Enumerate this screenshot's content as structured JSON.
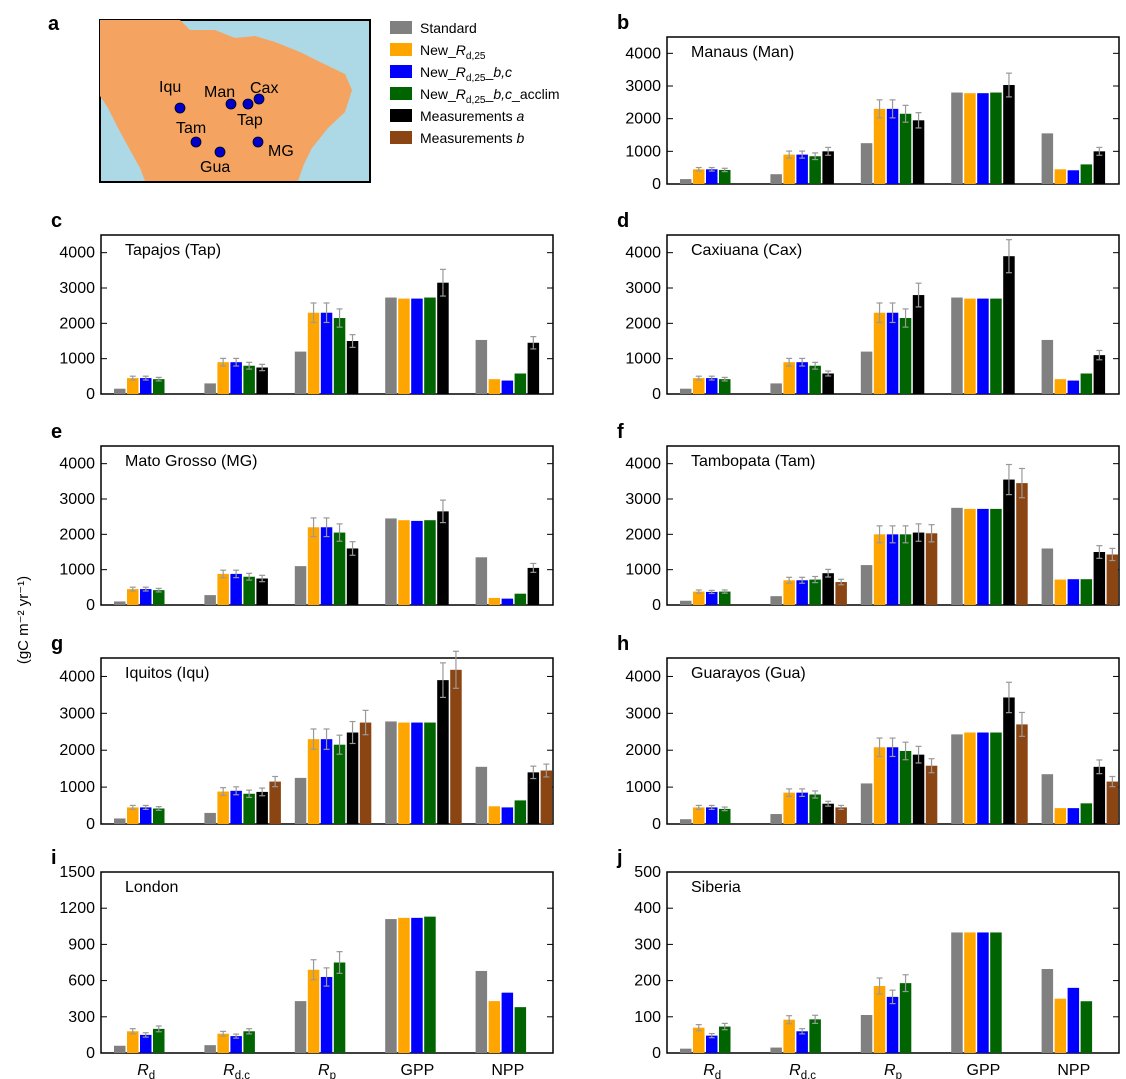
{
  "figure": {
    "ylabel": "(gC m⁻² yr⁻¹)"
  },
  "legend": {
    "items": [
      {
        "label": "Standard",
        "color": "#808080"
      },
      {
        "label": "New_Rd,25",
        "color": "#FFA500"
      },
      {
        "label": "New_Rd,25_b,c",
        "color": "#0000FF"
      },
      {
        "label": "New_Rd,25_b,c_acclim",
        "color": "#006400"
      },
      {
        "label": "Measurements a",
        "color": "#000000"
      },
      {
        "label": "Measurements b",
        "color": "#8B4513"
      }
    ]
  },
  "map": {
    "letter": "a",
    "sites": [
      {
        "code": "Iqu"
      },
      {
        "code": "Man"
      },
      {
        "code": "Cax"
      },
      {
        "code": "Tap"
      },
      {
        "code": "Tam"
      },
      {
        "code": "MG"
      },
      {
        "code": "Gua"
      }
    ],
    "colors": {
      "land": "#F4A460",
      "ocean": "#ADD8E6",
      "site": "#0000CC"
    }
  },
  "chart_data": [
    {
      "letter": "b",
      "title": "Manaus (Man)",
      "type": "bar",
      "categories": [
        "Rd",
        "Rd,c",
        "Rp",
        "GPP",
        "NPP"
      ],
      "ylim": [
        0,
        4500
      ],
      "yticks": [
        0,
        1000,
        2000,
        3000,
        4000
      ],
      "series": [
        {
          "values": [
            150,
            300,
            1250,
            2800,
            1550
          ]
        },
        {
          "values": [
            450,
            900,
            2300,
            2780,
            450
          ]
        },
        {
          "values": [
            450,
            900,
            2300,
            2780,
            420
          ]
        },
        {
          "values": [
            430,
            850,
            2150,
            2800,
            600
          ]
        },
        {
          "values": [
            null,
            1000,
            1950,
            3030,
            1000
          ]
        },
        {
          "values": [
            null,
            null,
            null,
            null,
            null
          ]
        }
      ]
    },
    {
      "letter": "c",
      "title": "Tapajos (Tap)",
      "type": "bar",
      "categories": [
        "Rd",
        "Rd,c",
        "Rp",
        "GPP",
        "NPP"
      ],
      "ylim": [
        0,
        4500
      ],
      "yticks": [
        0,
        1000,
        2000,
        3000,
        4000
      ],
      "series": [
        {
          "values": [
            150,
            300,
            1200,
            2730,
            1530
          ]
        },
        {
          "values": [
            450,
            900,
            2300,
            2700,
            420
          ]
        },
        {
          "values": [
            450,
            900,
            2300,
            2700,
            380
          ]
        },
        {
          "values": [
            420,
            800,
            2150,
            2730,
            580
          ]
        },
        {
          "values": [
            null,
            750,
            1500,
            3150,
            1450
          ]
        },
        {
          "values": [
            null,
            null,
            null,
            null,
            null
          ]
        }
      ]
    },
    {
      "letter": "d",
      "title": "Caxiuana (Cax)",
      "type": "bar",
      "categories": [
        "Rd",
        "Rd,c",
        "Rp",
        "GPP",
        "NPP"
      ],
      "ylim": [
        0,
        4500
      ],
      "yticks": [
        0,
        1000,
        2000,
        3000,
        4000
      ],
      "series": [
        {
          "values": [
            150,
            300,
            1200,
            2730,
            1530
          ]
        },
        {
          "values": [
            450,
            900,
            2300,
            2700,
            420
          ]
        },
        {
          "values": [
            450,
            900,
            2300,
            2700,
            380
          ]
        },
        {
          "values": [
            420,
            800,
            2150,
            2700,
            580
          ]
        },
        {
          "values": [
            null,
            580,
            2800,
            3900,
            1100
          ]
        },
        {
          "values": [
            null,
            null,
            null,
            null,
            null
          ]
        }
      ]
    },
    {
      "letter": "e",
      "title": "Mato Grosso (MG)",
      "type": "bar",
      "categories": [
        "Rd",
        "Rd,c",
        "Rp",
        "GPP",
        "NPP"
      ],
      "ylim": [
        0,
        4500
      ],
      "yticks": [
        0,
        1000,
        2000,
        3000,
        4000
      ],
      "series": [
        {
          "values": [
            100,
            280,
            1100,
            2450,
            1350
          ]
        },
        {
          "values": [
            450,
            880,
            2200,
            2400,
            200
          ]
        },
        {
          "values": [
            450,
            880,
            2200,
            2380,
            180
          ]
        },
        {
          "values": [
            420,
            800,
            2050,
            2400,
            320
          ]
        },
        {
          "values": [
            null,
            750,
            1600,
            2650,
            1050
          ]
        },
        {
          "values": [
            null,
            null,
            null,
            null,
            null
          ]
        }
      ]
    },
    {
      "letter": "f",
      "title": "Tambopata (Tam)",
      "type": "bar",
      "categories": [
        "Rd",
        "Rd,c",
        "Rp",
        "GPP",
        "NPP"
      ],
      "ylim": [
        0,
        4500
      ],
      "yticks": [
        0,
        1000,
        2000,
        3000,
        4000
      ],
      "series": [
        {
          "values": [
            120,
            250,
            1130,
            2750,
            1600
          ]
        },
        {
          "values": [
            380,
            700,
            2000,
            2720,
            720
          ]
        },
        {
          "values": [
            370,
            700,
            2000,
            2720,
            730
          ]
        },
        {
          "values": [
            380,
            720,
            2000,
            2720,
            730
          ]
        },
        {
          "values": [
            null,
            900,
            2050,
            3550,
            1500
          ]
        },
        {
          "values": [
            null,
            650,
            2030,
            3450,
            1430
          ]
        }
      ]
    },
    {
      "letter": "g",
      "title": "Iquitos (Iqu)",
      "type": "bar",
      "categories": [
        "Rd",
        "Rd,c",
        "Rp",
        "GPP",
        "NPP"
      ],
      "ylim": [
        0,
        4500
      ],
      "yticks": [
        0,
        1000,
        2000,
        3000,
        4000
      ],
      "series": [
        {
          "values": [
            150,
            300,
            1250,
            2780,
            1550
          ]
        },
        {
          "values": [
            450,
            880,
            2300,
            2750,
            480
          ]
        },
        {
          "values": [
            450,
            900,
            2300,
            2750,
            450
          ]
        },
        {
          "values": [
            420,
            820,
            2150,
            2750,
            640
          ]
        },
        {
          "values": [
            null,
            870,
            2480,
            3900,
            1400
          ]
        },
        {
          "values": [
            null,
            1150,
            2750,
            4180,
            1450
          ]
        }
      ]
    },
    {
      "letter": "h",
      "title": "Guarayos (Gua)",
      "type": "bar",
      "categories": [
        "Rd",
        "Rd,c",
        "Rp",
        "GPP",
        "NPP"
      ],
      "ylim": [
        0,
        4500
      ],
      "yticks": [
        0,
        1000,
        2000,
        3000,
        4000
      ],
      "series": [
        {
          "values": [
            130,
            270,
            1100,
            2430,
            1350
          ]
        },
        {
          "values": [
            450,
            850,
            2080,
            2480,
            430
          ]
        },
        {
          "values": [
            450,
            850,
            2080,
            2480,
            430
          ]
        },
        {
          "values": [
            410,
            800,
            1980,
            2480,
            560
          ]
        },
        {
          "values": [
            null,
            550,
            1880,
            3430,
            1550
          ]
        },
        {
          "values": [
            null,
            450,
            1580,
            2700,
            1150
          ]
        }
      ]
    },
    {
      "letter": "i",
      "title": "London",
      "type": "bar",
      "categories": [
        "Rd",
        "Rd,c",
        "Rp",
        "GPP",
        "NPP"
      ],
      "ylim": [
        0,
        1500
      ],
      "yticks": [
        0,
        300,
        600,
        900,
        1200,
        1500
      ],
      "series": [
        {
          "values": [
            60,
            65,
            430,
            1110,
            680
          ]
        },
        {
          "values": [
            180,
            160,
            690,
            1120,
            430
          ]
        },
        {
          "values": [
            150,
            140,
            630,
            1120,
            500
          ]
        },
        {
          "values": [
            200,
            180,
            750,
            1130,
            380
          ]
        },
        {
          "values": [
            null,
            null,
            null,
            null,
            null
          ]
        },
        {
          "values": [
            null,
            null,
            null,
            null,
            null
          ]
        }
      ]
    },
    {
      "letter": "j",
      "title": "Siberia",
      "type": "bar",
      "categories": [
        "Rd",
        "Rd,c",
        "Rp",
        "GPP",
        "NPP"
      ],
      "ylim": [
        0,
        500
      ],
      "yticks": [
        0,
        100,
        200,
        300,
        400,
        500
      ],
      "series": [
        {
          "values": [
            12,
            15,
            105,
            333,
            232
          ]
        },
        {
          "values": [
            70,
            92,
            185,
            333,
            150
          ]
        },
        {
          "values": [
            48,
            60,
            155,
            333,
            180
          ]
        },
        {
          "values": [
            73,
            93,
            193,
            333,
            143
          ]
        },
        {
          "values": [
            null,
            null,
            null,
            null,
            null
          ]
        },
        {
          "values": [
            null,
            null,
            null,
            null,
            null
          ]
        }
      ]
    }
  ]
}
